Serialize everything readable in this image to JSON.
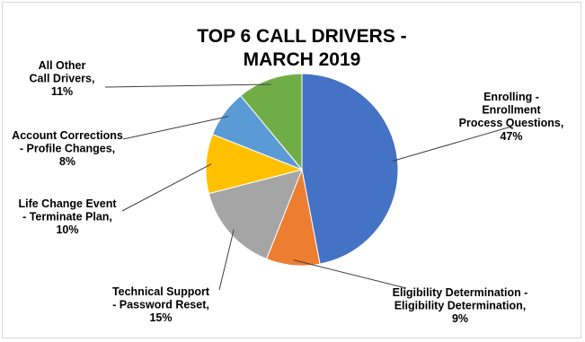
{
  "chart_data": {
    "type": "pie",
    "title_lines": [
      "TOP 6 CALL DRIVERS -",
      "MARCH 2019"
    ],
    "start_angle_deg": 0,
    "direction": "clockwise",
    "slices": [
      {
        "label_lines": [
          "Enrolling -",
          "Enrollment",
          "Process Questions,",
          "47%"
        ],
        "value": 47,
        "color": "#4472C4"
      },
      {
        "label_lines": [
          "Eligibility Determination -",
          "Eligibility Determination,",
          "9%"
        ],
        "value": 9,
        "color": "#ED7D31"
      },
      {
        "label_lines": [
          "Technical Support",
          "- Password Reset,",
          "15%"
        ],
        "value": 15,
        "color": "#A5A5A5"
      },
      {
        "label_lines": [
          "Life Change Event",
          "- Terminate Plan,",
          "10%"
        ],
        "value": 10,
        "color": "#FFC000"
      },
      {
        "label_lines": [
          "Account Corrections",
          "- Profile Changes,",
          "8%"
        ],
        "value": 8,
        "color": "#5B9BD5"
      },
      {
        "label_lines": [
          "All Other",
          "Call Drivers,",
          "11%"
        ],
        "value": 11,
        "color": "#70AD47"
      }
    ]
  }
}
